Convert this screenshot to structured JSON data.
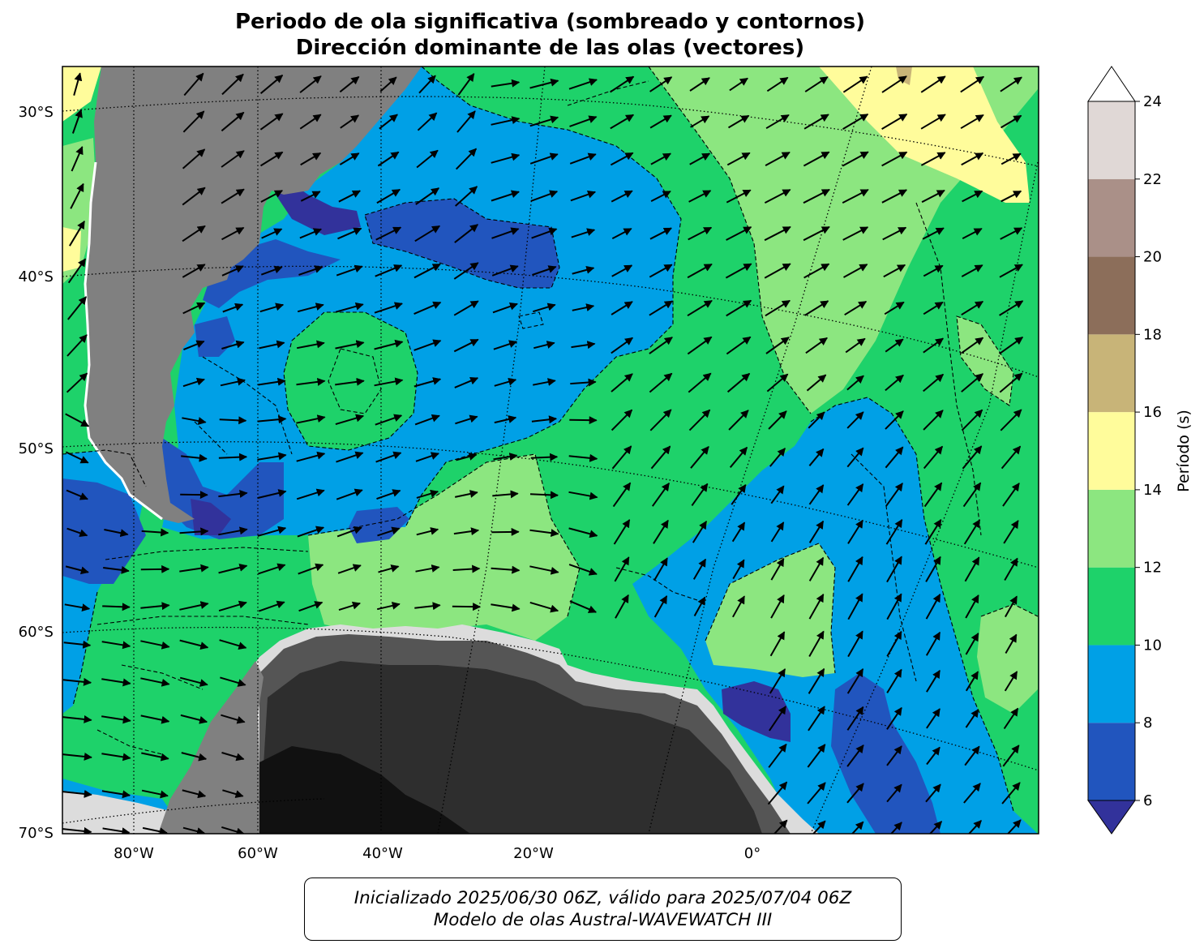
{
  "title": {
    "line1": "Periodo de ola significativa (sombreado y contornos)",
    "line2": "Dirección dominante de las olas (vectores)"
  },
  "map": {
    "lat_labels": [
      "30°S",
      "40°S",
      "50°S",
      "60°S",
      "70°S"
    ],
    "lon_labels": [
      "80°W",
      "60°W",
      "40°W",
      "20°W",
      "0°"
    ]
  },
  "colorbar": {
    "label": "Período (s)",
    "ticks": [
      "6",
      "8",
      "10",
      "12",
      "14",
      "16",
      "18",
      "20",
      "22",
      "24"
    ],
    "bins": [
      {
        "from": 6,
        "to": 8,
        "color": "#2155be"
      },
      {
        "from": 8,
        "to": 10,
        "color": "#00a0e6"
      },
      {
        "from": 10,
        "to": 12,
        "color": "#1ed26a"
      },
      {
        "from": 12,
        "to": 14,
        "color": "#8ce680"
      },
      {
        "from": 14,
        "to": 16,
        "color": "#fffc9b"
      },
      {
        "from": 16,
        "to": 18,
        "color": "#c8b478"
      },
      {
        "from": 18,
        "to": 20,
        "color": "#8c6e5a"
      },
      {
        "from": 20,
        "to": 22,
        "color": "#aa9088"
      },
      {
        "from": 22,
        "to": 24,
        "color": "#e0d8d6"
      }
    ],
    "under_color": "#32329b",
    "over_color": "#ffffff"
  },
  "colors": {
    "land": "#808080",
    "ice_darkest": "#111111"
  },
  "caption": {
    "line1": "Inicializado 2025/06/30 06Z, válido para 2025/07/04 06Z",
    "line2": "Modelo de olas Austral-WAVEWATCH III"
  }
}
